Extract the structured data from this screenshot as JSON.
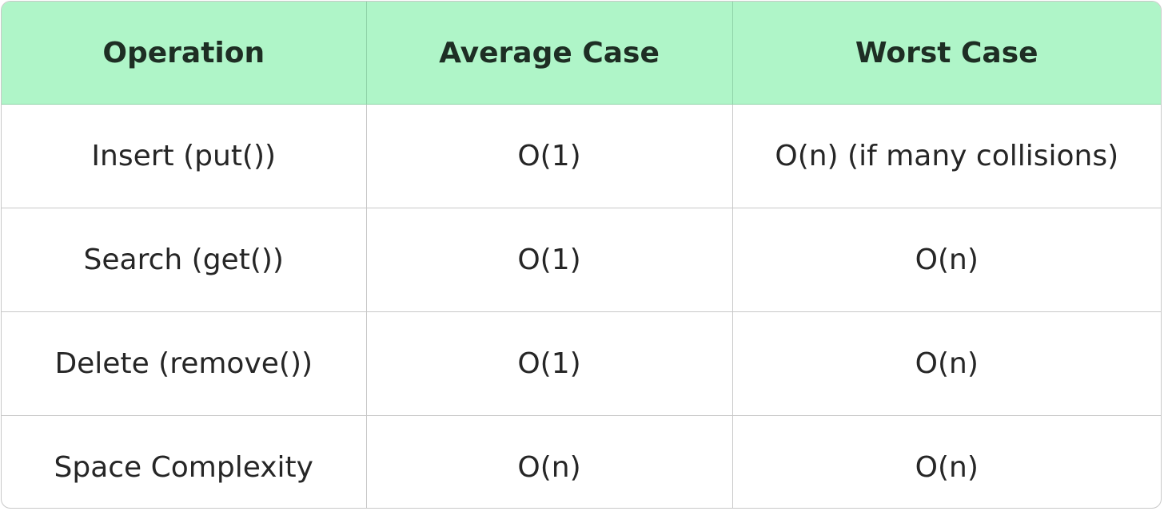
{
  "table": {
    "header": [
      "Operation",
      "Average Case",
      "Worst Case"
    ],
    "rows": [
      [
        "Insert (put())",
        "O(1)",
        "O(n) (if many collisions)"
      ],
      [
        "Search (get())",
        "O(1)",
        "O(n)"
      ],
      [
        "Delete (remove())",
        "O(1)",
        "O(n)"
      ],
      [
        "Space Complexity",
        "O(n)",
        "O(n)"
      ]
    ]
  }
}
